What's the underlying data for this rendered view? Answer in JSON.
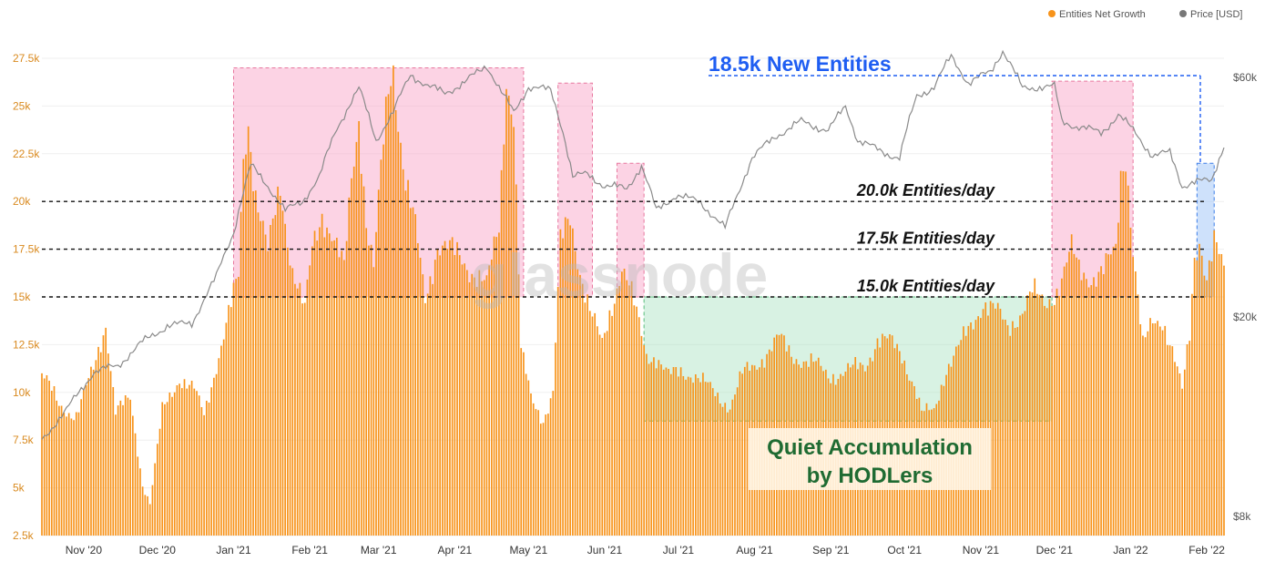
{
  "chart_data": {
    "type": "bar",
    "legend": {
      "items": [
        {
          "label": "Entities Net Growth",
          "color": "#f7931a"
        },
        {
          "label": "Price [USD]",
          "color": "#777777"
        }
      ],
      "placement": "top-right"
    },
    "watermark": "glassnode",
    "y_axis_left": {
      "ticks": [
        "2.5k",
        "5k",
        "7.5k",
        "10k",
        "12.5k",
        "15k",
        "17.5k",
        "20k",
        "22.5k",
        "25k",
        "27.5k"
      ],
      "tick_values": [
        2500,
        5000,
        7500,
        10000,
        12500,
        15000,
        17500,
        20000,
        22500,
        25000,
        27500
      ],
      "range": [
        2500,
        27500
      ]
    },
    "y_axis_right": {
      "ticks": [
        "$8k",
        "$20k",
        "$60k"
      ],
      "tick_values": [
        8000,
        20000,
        60000
      ],
      "scale": "log"
    },
    "x_axis": {
      "ticks": [
        "Nov '20",
        "Dec '20",
        "Jan '21",
        "Feb '21",
        "Mar '21",
        "Apr '21",
        "May '21",
        "Jun '21",
        "Jul '21",
        "Aug '21",
        "Sep '21",
        "Oct '21",
        "Nov '21",
        "Dec '21",
        "Jan '22",
        "Feb '22"
      ],
      "range": [
        "2020-10-15",
        "2022-02-08"
      ]
    },
    "series": [
      {
        "name": "Entities Net Growth",
        "type": "bar",
        "color": "#f7931a",
        "points": [
          [
            "2020-10-15",
            11000
          ],
          [
            "2020-10-22",
            9300
          ],
          [
            "2020-10-29",
            8800
          ],
          [
            "2020-11-05",
            11200
          ],
          [
            "2020-11-10",
            13700
          ],
          [
            "2020-11-14",
            9000
          ],
          [
            "2020-11-20",
            9600
          ],
          [
            "2020-11-25",
            5200
          ],
          [
            "2020-11-28",
            4200
          ],
          [
            "2020-12-03",
            9000
          ],
          [
            "2020-12-10",
            10800
          ],
          [
            "2020-12-16",
            10100
          ],
          [
            "2020-12-20",
            8800
          ],
          [
            "2020-12-25",
            11500
          ],
          [
            "2020-12-30",
            14000
          ],
          [
            "2021-01-03",
            16000
          ],
          [
            "2021-01-05",
            22200
          ],
          [
            "2021-01-07",
            24300
          ],
          [
            "2021-01-10",
            20500
          ],
          [
            "2021-01-15",
            17200
          ],
          [
            "2021-01-20",
            20800
          ],
          [
            "2021-01-25",
            16500
          ],
          [
            "2021-01-30",
            14200
          ],
          [
            "2021-02-02",
            17500
          ],
          [
            "2021-02-06",
            19500
          ],
          [
            "2021-02-10",
            18300
          ],
          [
            "2021-02-15",
            16300
          ],
          [
            "2021-02-18",
            21200
          ],
          [
            "2021-02-21",
            24600
          ],
          [
            "2021-02-24",
            19000
          ],
          [
            "2021-02-27",
            16400
          ],
          [
            "2021-03-02",
            21500
          ],
          [
            "2021-03-05",
            26000
          ],
          [
            "2021-03-07",
            27200
          ],
          [
            "2021-03-09",
            24500
          ],
          [
            "2021-03-12",
            21000
          ],
          [
            "2021-03-16",
            18500
          ],
          [
            "2021-03-20",
            14900
          ],
          [
            "2021-03-25",
            17800
          ],
          [
            "2021-03-30",
            17400
          ],
          [
            "2021-04-04",
            17000
          ],
          [
            "2021-04-09",
            16300
          ],
          [
            "2021-04-14",
            15500
          ],
          [
            "2021-04-19",
            18800
          ],
          [
            "2021-04-22",
            26700
          ],
          [
            "2021-04-25",
            24500
          ],
          [
            "2021-04-28",
            12100
          ],
          [
            "2021-05-02",
            9700
          ],
          [
            "2021-05-07",
            8600
          ],
          [
            "2021-05-11",
            10000
          ],
          [
            "2021-05-14",
            17700
          ],
          [
            "2021-05-18",
            19100
          ],
          [
            "2021-05-22",
            16500
          ],
          [
            "2021-05-26",
            14300
          ],
          [
            "2021-05-31",
            12400
          ],
          [
            "2021-06-04",
            14600
          ],
          [
            "2021-06-08",
            16700
          ],
          [
            "2021-06-11",
            15500
          ],
          [
            "2021-06-15",
            13500
          ],
          [
            "2021-06-18",
            12000
          ],
          [
            "2021-06-22",
            11900
          ],
          [
            "2021-06-27",
            10800
          ],
          [
            "2021-07-02",
            11100
          ],
          [
            "2021-07-07",
            11000
          ],
          [
            "2021-07-12",
            10400
          ],
          [
            "2021-07-17",
            9800
          ],
          [
            "2021-07-22",
            9300
          ],
          [
            "2021-07-27",
            10900
          ],
          [
            "2021-08-01",
            11400
          ],
          [
            "2021-08-06",
            12100
          ],
          [
            "2021-08-11",
            12800
          ],
          [
            "2021-08-16",
            12000
          ],
          [
            "2021-08-21",
            11700
          ],
          [
            "2021-08-26",
            11400
          ],
          [
            "2021-08-31",
            10900
          ],
          [
            "2021-09-05",
            11000
          ],
          [
            "2021-09-10",
            11200
          ],
          [
            "2021-09-15",
            11400
          ],
          [
            "2021-09-20",
            12800
          ],
          [
            "2021-09-25",
            12600
          ],
          [
            "2021-09-30",
            12000
          ],
          [
            "2021-10-05",
            10400
          ],
          [
            "2021-10-08",
            8900
          ],
          [
            "2021-10-13",
            9000
          ],
          [
            "2021-10-18",
            11300
          ],
          [
            "2021-10-23",
            12300
          ],
          [
            "2021-10-28",
            13400
          ],
          [
            "2021-11-02",
            14800
          ],
          [
            "2021-11-07",
            14300
          ],
          [
            "2021-11-12",
            13300
          ],
          [
            "2021-11-17",
            14200
          ],
          [
            "2021-11-22",
            15200
          ],
          [
            "2021-11-27",
            14600
          ],
          [
            "2021-12-02",
            15400
          ],
          [
            "2021-12-05",
            16300
          ],
          [
            "2021-12-08",
            17400
          ],
          [
            "2021-12-11",
            16400
          ],
          [
            "2021-12-16",
            16100
          ],
          [
            "2021-12-21",
            16300
          ],
          [
            "2021-12-26",
            17400
          ],
          [
            "2021-12-28",
            21500
          ],
          [
            "2021-12-30",
            22700
          ],
          [
            "2022-01-02",
            17500
          ],
          [
            "2022-01-06",
            12300
          ],
          [
            "2022-01-10",
            13700
          ],
          [
            "2022-01-14",
            13900
          ],
          [
            "2022-01-18",
            12200
          ],
          [
            "2022-01-22",
            10000
          ],
          [
            "2022-01-25",
            13000
          ],
          [
            "2022-01-27",
            17200
          ],
          [
            "2022-01-29",
            18200
          ],
          [
            "2022-02-01",
            16000
          ],
          [
            "2022-02-04",
            17700
          ],
          [
            "2022-02-08",
            16300
          ]
        ]
      },
      {
        "name": "Price [USD]",
        "type": "line",
        "color": "#888888",
        "points": [
          [
            "2020-10-15",
            11400
          ],
          [
            "2020-10-25",
            13000
          ],
          [
            "2020-11-05",
            15500
          ],
          [
            "2020-11-15",
            16000
          ],
          [
            "2020-11-25",
            17800
          ],
          [
            "2020-12-05",
            19200
          ],
          [
            "2020-12-15",
            19400
          ],
          [
            "2020-12-25",
            24000
          ],
          [
            "2021-01-01",
            29500
          ],
          [
            "2021-01-08",
            40000
          ],
          [
            "2021-01-15",
            36500
          ],
          [
            "2021-01-22",
            32500
          ],
          [
            "2021-01-29",
            34000
          ],
          [
            "2021-02-05",
            38000
          ],
          [
            "2021-02-12",
            47500
          ],
          [
            "2021-02-21",
            57000
          ],
          [
            "2021-02-28",
            45000
          ],
          [
            "2021-03-07",
            51000
          ],
          [
            "2021-03-14",
            61000
          ],
          [
            "2021-03-21",
            57500
          ],
          [
            "2021-03-28",
            56000
          ],
          [
            "2021-04-05",
            58500
          ],
          [
            "2021-04-14",
            63500
          ],
          [
            "2021-04-20",
            56000
          ],
          [
            "2021-04-25",
            51000
          ],
          [
            "2021-05-01",
            57500
          ],
          [
            "2021-05-10",
            56500
          ],
          [
            "2021-05-15",
            47000
          ],
          [
            "2021-05-19",
            38000
          ],
          [
            "2021-05-25",
            38500
          ],
          [
            "2021-06-01",
            36500
          ],
          [
            "2021-06-10",
            36000
          ],
          [
            "2021-06-16",
            40000
          ],
          [
            "2021-06-22",
            32500
          ],
          [
            "2021-06-30",
            35000
          ],
          [
            "2021-07-10",
            33800
          ],
          [
            "2021-07-20",
            30000
          ],
          [
            "2021-07-25",
            35000
          ],
          [
            "2021-07-31",
            41500
          ],
          [
            "2021-08-10",
            46000
          ],
          [
            "2021-08-20",
            49000
          ],
          [
            "2021-08-31",
            47000
          ],
          [
            "2021-09-07",
            52500
          ],
          [
            "2021-09-12",
            45000
          ],
          [
            "2021-09-21",
            42800
          ],
          [
            "2021-09-29",
            41500
          ],
          [
            "2021-10-06",
            55000
          ],
          [
            "2021-10-13",
            57500
          ],
          [
            "2021-10-20",
            66000
          ],
          [
            "2021-10-27",
            58500
          ],
          [
            "2021-11-05",
            61500
          ],
          [
            "2021-11-10",
            68000
          ],
          [
            "2021-11-18",
            57000
          ],
          [
            "2021-11-25",
            57500
          ],
          [
            "2021-12-01",
            57500
          ],
          [
            "2021-12-04",
            49000
          ],
          [
            "2021-12-10",
            48000
          ],
          [
            "2021-12-20",
            46500
          ],
          [
            "2021-12-27",
            50500
          ],
          [
            "2022-01-03",
            46500
          ],
          [
            "2022-01-10",
            41800
          ],
          [
            "2022-01-17",
            42500
          ],
          [
            "2022-01-22",
            36500
          ],
          [
            "2022-01-27",
            37000
          ],
          [
            "2022-02-03",
            37500
          ],
          [
            "2022-02-08",
            44000
          ]
        ]
      }
    ],
    "reference_lines": [
      {
        "value": 20000,
        "label": "20.0k Entities/day"
      },
      {
        "value": 17500,
        "label": "17.5k Entities/day"
      },
      {
        "value": 15000,
        "label": "15.0k Entities/day"
      }
    ],
    "highlight_regions": [
      {
        "kind": "surge",
        "x": [
          "2021-01-01",
          "2021-04-29"
        ],
        "y": [
          15000,
          27000
        ],
        "color": "#f9a8c9"
      },
      {
        "kind": "surge",
        "x": [
          "2021-05-13",
          "2021-05-27"
        ],
        "y": [
          15000,
          26200
        ],
        "color": "#f9a8c9"
      },
      {
        "kind": "surge",
        "x": [
          "2021-06-06",
          "2021-06-17"
        ],
        "y": [
          15000,
          22000
        ],
        "color": "#f9a8c9"
      },
      {
        "kind": "surge",
        "x": [
          "2021-11-30",
          "2022-01-02"
        ],
        "y": [
          15000,
          26300
        ],
        "color": "#f9a8c9"
      },
      {
        "kind": "quiet",
        "x": [
          "2021-06-17",
          "2021-11-30"
        ],
        "y": [
          8500,
          15000
        ],
        "color": "#a9e3c0"
      },
      {
        "kind": "new",
        "x": [
          "2022-01-28",
          "2022-02-04"
        ],
        "y": [
          15000,
          22000
        ],
        "color": "#9ec4f7"
      }
    ],
    "annotations": {
      "new_entities": "18.5k New Entities",
      "quiet_line1": "Quiet Accumulation",
      "quiet_line2": "by HODLers"
    }
  }
}
